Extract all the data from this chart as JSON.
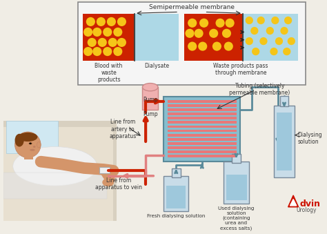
{
  "bg_color": "#f0ede5",
  "inset_bg": "#f5f5f5",
  "inset_border": "#888888",
  "blood_color": "#cc2200",
  "dialysate_color": "#add8e6",
  "waste_dot_color": "#f5c518",
  "machine_box_color": "#87bece",
  "machine_box_edge": "#5a8a9a",
  "tubing_lines_color": "#e87878",
  "blood_line_color": "#cc2200",
  "return_line_color": "#e08080",
  "pump_color": "#f0b0b0",
  "pump_edge": "#cc8888",
  "bottle_color": "#c8dce8",
  "bottle_liquid_color": "#9ec8dc",
  "tall_bottle_color": "#c8dce8",
  "tall_bottle_liquid": "#9ec8dc",
  "label_color": "#333333",
  "advin_color": "#cc1100",
  "membrane_label": "Semipermeable membrane",
  "blood_label": "Blood with\nwaste\nproducts",
  "dialysate_label": "Dialysate",
  "waste_label": "Waste products pass\nthrough membrane",
  "line_artery_label": "Line from\nartery to\napparatus",
  "pump_label": "Pump",
  "tubing_label": "Tubing (selectively\npermeable membrane)",
  "dialysing_sol_label": "Dialysing\nsolution",
  "line_vein_label": "Line from\napparatus to vein",
  "fresh_label": "Fresh dialysing solution",
  "used_label": "Used dialysing\nsolution\n(containing\nurea and\nexcess salts)",
  "skin_color": "#d4956a",
  "hair_color": "#7b3f10",
  "bed_color": "#b8d4e0",
  "pillow_color": "#d0e8f2",
  "shirt_color": "#f0f0f0"
}
